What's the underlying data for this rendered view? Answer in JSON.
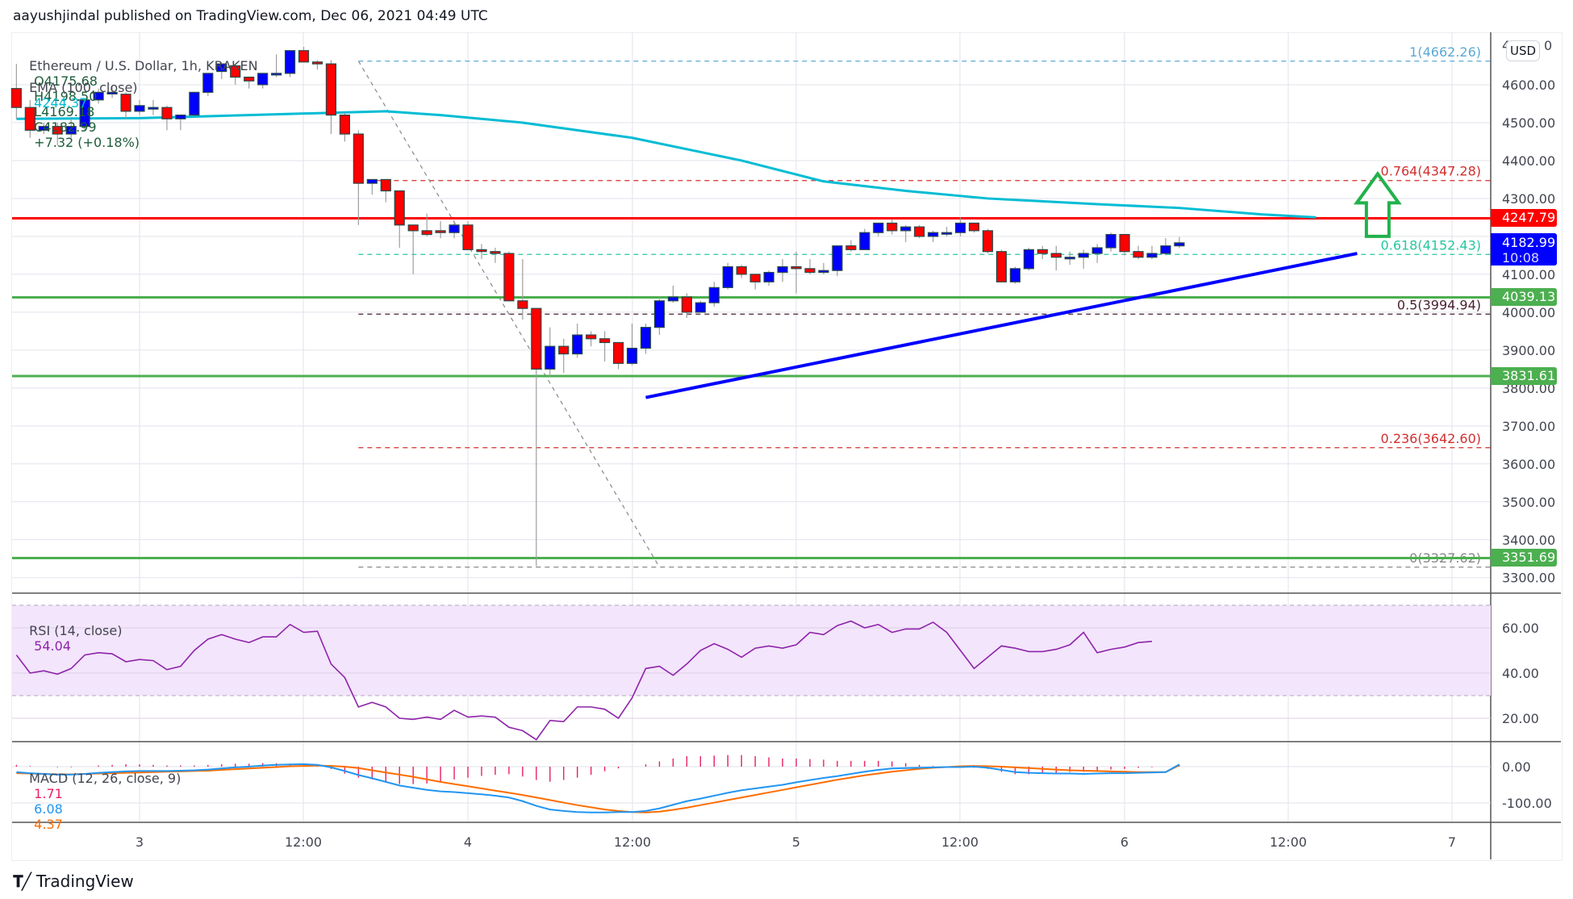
{
  "header": {
    "published": "aayushjindal published on TradingView.com, Dec 06, 2021 04:49 UTC"
  },
  "legend": {
    "symbol": "Ethereum / U.S. Dollar, 1h, KRAKEN",
    "open": "O4175.68",
    "high": "H4198.50",
    "low": "L4169.18",
    "close": "C4182.99",
    "change": "+7.32 (+0.18%)",
    "ema_label": "EMA (100, close)",
    "ema_value": "4244.37",
    "rsi_label": "RSI (14, close)",
    "rsi_value": "54.04",
    "macd_label": "MACD (12, 26, close, 9)",
    "macd_hist": "1.71",
    "macd_line": "6.08",
    "macd_signal": "4.37"
  },
  "currency_button": "USD",
  "footer": {
    "brand": "TradingView",
    "mark": "17"
  },
  "colors": {
    "bull": "#0000ff",
    "bear": "#ff0000",
    "candle_border": "#2a4a4a",
    "ema": "#00bcd4",
    "resistance": "#ff0000",
    "support": "#4caf50",
    "trendline": "#0000ff",
    "arrow": "#22b14c",
    "rsi_line": "#8e24aa",
    "rsi_band": "#f3e5fc",
    "macd_line": "#2196f3",
    "signal_line": "#ff6d00",
    "histogram": "#e91e63",
    "fib_1": "#5aa9d6",
    "fib_0764": "#d32f2f",
    "fib_0618": "#26c6a0",
    "fib_05": "#4a1f2f",
    "fib_0236": "#d32f2f",
    "fib_0": "#888888"
  },
  "price_badges": [
    {
      "label": "4247.79",
      "color": "#ff0000",
      "price": 4247.79
    },
    {
      "label": "4182.99",
      "sub": "10:08",
      "color": "#0000ff",
      "price": 4182.99
    },
    {
      "label": "4039.13",
      "color": "#4caf50",
      "price": 4039.13
    },
    {
      "label": "3831.61",
      "color": "#4caf50",
      "price": 3831.61
    },
    {
      "label": "3351.69",
      "color": "#4caf50",
      "price": 3351.69
    }
  ],
  "chart_data": [
    {
      "type": "candlestick",
      "title": "Ethereum / U.S. Dollar, 1h, KRAKEN",
      "xlabel": "",
      "ylabel": "USD",
      "ylim": [
        3270,
        4700
      ],
      "y_ticks": [
        4600,
        4500,
        4400,
        4300,
        4200,
        4100,
        4000,
        3900,
        3800,
        3700,
        3600,
        3500,
        3400,
        3300
      ],
      "y_tick_labels": [
        "4600.00",
        "4500.00",
        "4400.00",
        "4300.00",
        "4200.00",
        "4100.00",
        "4000.00",
        "3900.00",
        "3800.00",
        "3700.00",
        "3600.00",
        "3500.00",
        "3400.00",
        "3300.00"
      ],
      "x_tick_labels": [
        "3",
        "12:00",
        "4",
        "12:00",
        "5",
        "12:00",
        "6",
        "12:00",
        "7"
      ],
      "grid": true,
      "first_candle_hour_offset": -9,
      "candles_ohlc": [
        [
          4590,
          4655,
          4510,
          4540
        ],
        [
          4540,
          4560,
          4460,
          4480
        ],
        [
          4480,
          4500,
          4470,
          4490
        ],
        [
          4490,
          4500,
          4440,
          4470
        ],
        [
          4470,
          4510,
          4460,
          4490
        ],
        [
          4490,
          4560,
          4480,
          4560
        ],
        [
          4560,
          4590,
          4550,
          4580
        ],
        [
          4580,
          4595,
          4565,
          4580
        ],
        [
          4575,
          4580,
          4510,
          4530
        ],
        [
          4530,
          4560,
          4520,
          4545
        ],
        [
          4540,
          4560,
          4520,
          4540
        ],
        [
          4540,
          4545,
          4480,
          4510
        ],
        [
          4510,
          4520,
          4480,
          4520
        ],
        [
          4520,
          4570,
          4520,
          4580
        ],
        [
          4580,
          4630,
          4570,
          4630
        ],
        [
          4635,
          4650,
          4615,
          4655
        ],
        [
          4650,
          4655,
          4600,
          4620
        ],
        [
          4620,
          4620,
          4590,
          4610
        ],
        [
          4600,
          4620,
          4590,
          4630
        ],
        [
          4630,
          4680,
          4620,
          4630
        ],
        [
          4630,
          4660,
          4620,
          4690
        ],
        [
          4690,
          4700,
          4660,
          4660
        ],
        [
          4660,
          4665,
          4640,
          4655
        ],
        [
          4655,
          4665,
          4470,
          4520
        ],
        [
          4520,
          4525,
          4450,
          4470
        ],
        [
          4470,
          4480,
          4230,
          4340
        ],
        [
          4340,
          4350,
          4310,
          4350
        ],
        [
          4350,
          4350,
          4290,
          4320
        ],
        [
          4320,
          4320,
          4170,
          4230
        ],
        [
          4230,
          4230,
          4100,
          4215
        ],
        [
          4215,
          4260,
          4200,
          4205
        ],
        [
          4215,
          4240,
          4195,
          4210
        ],
        [
          4210,
          4240,
          4195,
          4230
        ],
        [
          4230,
          4240,
          4190,
          4165
        ],
        [
          4165,
          4180,
          4140,
          4160
        ],
        [
          4160,
          4170,
          4130,
          4155
        ],
        [
          4155,
          4160,
          4050,
          4030
        ],
        [
          4030,
          4140,
          3980,
          4010
        ],
        [
          4010,
          4010,
          3330,
          3850
        ],
        [
          3850,
          3960,
          3830,
          3910
        ],
        [
          3910,
          3930,
          3840,
          3890
        ],
        [
          3890,
          3970,
          3880,
          3940
        ],
        [
          3940,
          3950,
          3910,
          3930
        ],
        [
          3930,
          3950,
          3870,
          3920
        ],
        [
          3920,
          3920,
          3850,
          3865
        ],
        [
          3865,
          3970,
          3860,
          3905
        ],
        [
          3905,
          3970,
          3890,
          3960
        ],
        [
          3960,
          4040,
          3940,
          4030
        ],
        [
          4030,
          4070,
          4025,
          4040
        ],
        [
          4040,
          4050,
          3985,
          4000
        ],
        [
          4000,
          4030,
          4000,
          4025
        ],
        [
          4025,
          4080,
          4015,
          4065
        ],
        [
          4065,
          4130,
          4060,
          4120
        ],
        [
          4120,
          4125,
          4090,
          4100
        ],
        [
          4100,
          4100,
          4060,
          4080
        ],
        [
          4080,
          4110,
          4070,
          4105
        ],
        [
          4105,
          4140,
          4080,
          4120
        ],
        [
          4120,
          4160,
          4050,
          4115
        ],
        [
          4115,
          4140,
          4100,
          4105
        ],
        [
          4105,
          4130,
          4100,
          4110
        ],
        [
          4110,
          4125,
          4095,
          4175
        ],
        [
          4175,
          4190,
          4160,
          4165
        ],
        [
          4165,
          4220,
          4165,
          4210
        ],
        [
          4210,
          4235,
          4200,
          4235
        ],
        [
          4235,
          4245,
          4205,
          4215
        ],
        [
          4215,
          4230,
          4185,
          4225
        ],
        [
          4225,
          4230,
          4195,
          4200
        ],
        [
          4200,
          4215,
          4185,
          4210
        ],
        [
          4210,
          4225,
          4200,
          4210
        ],
        [
          4210,
          4250,
          4200,
          4235
        ],
        [
          4235,
          4235,
          4210,
          4215
        ],
        [
          4215,
          4220,
          4155,
          4160
        ],
        [
          4160,
          4165,
          4080,
          4080
        ],
        [
          4080,
          4120,
          4075,
          4115
        ],
        [
          4115,
          4170,
          4110,
          4165
        ],
        [
          4165,
          4175,
          4140,
          4155
        ],
        [
          4155,
          4175,
          4110,
          4145
        ],
        [
          4145,
          4160,
          4125,
          4145
        ],
        [
          4145,
          4165,
          4115,
          4155
        ],
        [
          4155,
          4180,
          4130,
          4170
        ],
        [
          4170,
          4210,
          4160,
          4205
        ],
        [
          4205,
          4205,
          4150,
          4160
        ],
        [
          4160,
          4175,
          4140,
          4145
        ],
        [
          4145,
          4175,
          4140,
          4155
        ],
        [
          4155,
          4195,
          4150,
          4175
        ],
        [
          4175,
          4198.5,
          4169.18,
          4182.99
        ]
      ],
      "ema_100": [
        [
          -9,
          4510
        ],
        [
          0,
          4512
        ],
        [
          10,
          4522
        ],
        [
          18,
          4530
        ],
        [
          22,
          4520
        ],
        [
          28,
          4500
        ],
        [
          36,
          4460
        ],
        [
          44,
          4400
        ],
        [
          50,
          4345
        ],
        [
          56,
          4320
        ],
        [
          62,
          4300
        ],
        [
          70,
          4285
        ],
        [
          76,
          4275
        ],
        [
          82,
          4258
        ],
        [
          86,
          4250
        ]
      ],
      "horizontal_levels": [
        {
          "name": "resistance",
          "price": 4247.79,
          "color": "#ff0000",
          "width": 3
        },
        {
          "name": "support-1",
          "price": 4039.13,
          "color": "#4caf50",
          "width": 3
        },
        {
          "name": "support-2",
          "price": 3831.61,
          "color": "#4caf50",
          "width": 3
        },
        {
          "name": "support-3",
          "price": 3351.69,
          "color": "#4caf50",
          "width": 3
        }
      ],
      "fibonacci": {
        "from_hour": 16,
        "to_hour": 38,
        "levels": [
          {
            "ratio": "1",
            "price": 4662.26,
            "label": "1(4662.26)",
            "color": "#5aa9d6"
          },
          {
            "ratio": "0.764",
            "price": 4347.28,
            "label": "0.764(4347.28)",
            "color": "#d32f2f"
          },
          {
            "ratio": "0.618",
            "price": 4152.43,
            "label": "0.618(4152.43)",
            "color": "#26c6a0"
          },
          {
            "ratio": "0.5",
            "price": 3994.94,
            "label": "0.5(3994.94)",
            "color": "#4a1f2f"
          },
          {
            "ratio": "0.236",
            "price": 3642.6,
            "label": "0.236(3642.60)",
            "color": "#d32f2f"
          },
          {
            "ratio": "0",
            "price": 3327.62,
            "label": "0(3327.62)",
            "color": "#888888"
          }
        ]
      },
      "trendline": {
        "from": [
          37,
          3775
        ],
        "to": [
          89,
          4155
        ]
      },
      "annotation_arrow": {
        "hour": 90.5,
        "base_price": 4200,
        "tip_price": 4365,
        "direction": "up"
      }
    },
    {
      "type": "line",
      "title": "RSI (14, close)",
      "ylim": [
        5,
        75
      ],
      "y_ticks": [
        60,
        40,
        20
      ],
      "y_tick_labels": [
        "60.00",
        "40.00",
        "20.00"
      ],
      "band": [
        30,
        70
      ],
      "last_value": 54.04,
      "values": [
        48,
        40,
        41,
        39.5,
        42,
        48,
        49,
        48.5,
        45,
        46,
        45.5,
        41.5,
        43,
        50,
        55,
        57,
        55,
        53.5,
        56,
        56,
        61.5,
        58,
        58.5,
        44,
        38,
        25,
        27,
        25,
        20,
        19.5,
        20.5,
        19.5,
        23.5,
        20.5,
        21,
        20.5,
        16,
        14.5,
        10.5,
        19,
        18.5,
        25,
        25,
        24,
        20,
        29,
        42,
        43,
        39,
        44,
        50,
        53,
        50.5,
        47,
        51,
        52,
        51,
        52.5,
        58,
        57,
        61,
        63,
        60,
        61.5,
        58,
        59.5,
        59.5,
        62.5,
        58,
        50,
        42,
        47,
        52,
        51,
        49.5,
        49.5,
        50.5,
        52.5,
        58,
        49,
        50.5,
        51.5,
        53.5,
        54
      ]
    },
    {
      "type": "line",
      "title": "MACD (12, 26, close, 9)",
      "ylim": [
        -150,
        40
      ],
      "y_ticks": [
        0,
        -100
      ],
      "y_tick_labels": [
        "0.00",
        "-100.00"
      ],
      "last_values": {
        "histogram": 1.71,
        "macd": 6.08,
        "signal": 4.37
      },
      "macd": [
        -15,
        -18,
        -20,
        -22,
        -22,
        -20,
        -17,
        -15,
        -13,
        -12,
        -12,
        -12,
        -11,
        -10,
        -8,
        -5,
        -2,
        0,
        3,
        5,
        6,
        7,
        5,
        -2,
        -12,
        -23,
        -32,
        -42,
        -52,
        -58,
        -64,
        -68,
        -70,
        -73,
        -76,
        -80,
        -85,
        -95,
        -108,
        -118,
        -122,
        -125,
        -126,
        -126,
        -125,
        -125,
        -122,
        -115,
        -105,
        -95,
        -88,
        -80,
        -72,
        -65,
        -60,
        -55,
        -50,
        -43,
        -37,
        -31,
        -26,
        -20,
        -14,
        -9,
        -5,
        -4,
        -3,
        -2,
        -1,
        -1,
        0,
        -3,
        -9,
        -15,
        -17,
        -18,
        -19,
        -19,
        -20,
        -19,
        -18,
        -18,
        -17,
        -16,
        -15,
        6
      ],
      "signal": [
        -18,
        -19,
        -20,
        -21,
        -21,
        -20,
        -19,
        -18,
        -17,
        -16,
        -15,
        -14,
        -13,
        -12,
        -11,
        -9,
        -7,
        -5,
        -3,
        -1,
        1,
        2,
        3,
        2,
        0,
        -4,
        -10,
        -16,
        -22,
        -28,
        -35,
        -42,
        -48,
        -54,
        -60,
        -66,
        -72,
        -78,
        -85,
        -92,
        -99,
        -106,
        -112,
        -118,
        -122,
        -125,
        -126,
        -124,
        -119,
        -113,
        -106,
        -99,
        -92,
        -85,
        -78,
        -71,
        -64,
        -57,
        -50,
        -43,
        -36,
        -30,
        -24,
        -19,
        -14,
        -10,
        -6,
        -3,
        -1,
        1,
        2,
        1,
        0,
        -2,
        -4,
        -6,
        -8,
        -10,
        -11,
        -12,
        -13,
        -14,
        -15,
        -15,
        -15,
        4
      ]
    }
  ]
}
